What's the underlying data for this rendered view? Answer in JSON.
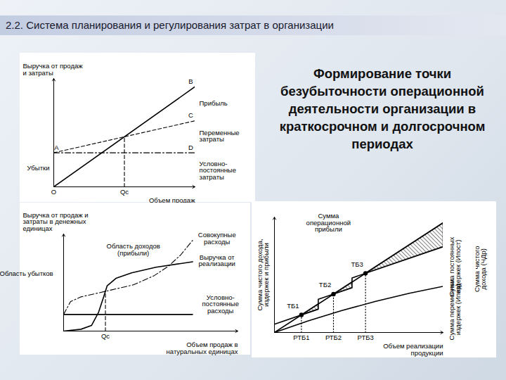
{
  "header": "2.2. Система планирования и регулирования затрат в организации",
  "title": "Формирование точки безубыточности операционной деятельности организации в краткосрочном и долгосрочном периодах",
  "chart_data": [
    {
      "type": "line",
      "color": "#000000",
      "ylabel": "Выручка от продаж и затраты",
      "xlabel": "Объем продаж",
      "xlim": [
        0,
        100
      ],
      "ylim": [
        0,
        105
      ],
      "xticks": [
        {
          "value": 0,
          "label": "O"
        },
        {
          "value": 50,
          "label": "Qc"
        }
      ],
      "tick_labels": "x",
      "series": [
        {
          "x": [
            0,
            100
          ],
          "values": [
            0,
            97
          ],
          "line_style": "solid"
        },
        {
          "x": [
            0,
            100
          ],
          "values": [
            33,
            64
          ],
          "line_style": "dashed"
        },
        {
          "x": [
            0,
            100
          ],
          "values": [
            33,
            33
          ],
          "line_style": "dashdot"
        },
        {
          "x": [
            50,
            50
          ],
          "values": [
            0,
            48.5
          ],
          "line_style": "dashed"
        }
      ],
      "annotations": [
        {
          "text": "A",
          "x": 2,
          "y": 38
        },
        {
          "text": "B",
          "x": 97,
          "y": 102
        },
        {
          "text": "C",
          "x": 97,
          "y": 69
        },
        {
          "text": "D",
          "x": 97,
          "y": 38
        },
        {
          "text": "Прибыль",
          "x": 103,
          "y": 81
        },
        {
          "text": "Переменные затраты",
          "x": 103,
          "y": 49
        },
        {
          "text": "Условно-постоянные затраты",
          "x": 103,
          "y": 16
        },
        {
          "text": "Убытки",
          "x": -3,
          "y": 18
        }
      ]
    },
    {
      "type": "line",
      "color": "#000000",
      "ylabel": "Выручка от продаж и затраты в денежных единицах",
      "xlabel": "Объем продаж в натуральных единицах",
      "xlim": [
        0,
        100
      ],
      "ylim": [
        0,
        105
      ],
      "xticks": [
        {
          "value": 24,
          "label": "Qc"
        }
      ],
      "tick_labels": "x",
      "series": [
        {
          "x": [
            0,
            10,
            16,
            20,
            23,
            25,
            30,
            39,
            53,
            74
          ],
          "values": [
            0,
            2,
            6,
            20,
            37,
            49,
            57,
            63,
            69,
            75
          ],
          "line_style": "solid"
        },
        {
          "x": [
            0,
            4,
            10,
            24,
            40,
            52,
            60,
            67,
            74
          ],
          "values": [
            18,
            32,
            37,
            43,
            50,
            60,
            70,
            82,
            98
          ],
          "line_style": "dashdot"
        },
        {
          "x": [
            0,
            74
          ],
          "values": [
            18,
            18
          ],
          "line_style": "solid"
        },
        {
          "x": [
            24,
            24
          ],
          "values": [
            0,
            43
          ],
          "line_style": "dashed"
        }
      ],
      "annotations": [
        {
          "text": "Совокупные расходы",
          "x": 88,
          "y": 100
        },
        {
          "text": "Выручка от реализации",
          "x": 88,
          "y": 76
        },
        {
          "text": "Условно-постоянные расходы",
          "x": 90,
          "y": 29
        },
        {
          "text": "Область доходов (прибыли)",
          "x": 40,
          "y": 88
        },
        {
          "text": "Область убытков",
          "x": -6,
          "y": 62
        }
      ]
    },
    {
      "type": "line",
      "color": "#000000",
      "ylabel": "Сумма чистого дохода, издержек и прибыли",
      "xlabel": "Объем реализации продукции",
      "xlim": [
        0,
        100
      ],
      "ylim": [
        0,
        100
      ],
      "xticks": [
        {
          "value": 16,
          "label": "РТБ1"
        },
        {
          "value": 35,
          "label": "РТБ2"
        },
        {
          "value": 54,
          "label": "РТБ3"
        }
      ],
      "tick_labels": "x",
      "series": [
        {
          "type": "area",
          "x": [
            16,
            26
          ],
          "values": [
            15.2,
            24.7
          ],
          "lower": [
            15.2,
            20.2
          ]
        },
        {
          "type": "area",
          "x": [
            35,
            46
          ],
          "values": [
            33.25,
            43.7
          ],
          "lower": [
            33.25,
            38.75
          ]
        },
        {
          "type": "area",
          "x": [
            54,
            100
          ],
          "values": [
            51.3,
            95
          ],
          "lower": [
            51.3,
            74.3
          ]
        },
        {
          "x": [
            0,
            100
          ],
          "values": [
            0,
            95
          ],
          "line_style": "solid"
        },
        {
          "x": [
            0,
            26,
            26,
            46,
            46,
            100
          ],
          "values": [
            7.2,
            20.2,
            28.75,
            38.75,
            47.3,
            74.3
          ],
          "line_style": "solid"
        },
        {
          "x": [
            0,
            20,
            40,
            60,
            80,
            100
          ],
          "values": [
            0,
            10,
            19,
            27,
            34,
            40
          ],
          "line_style": "solid"
        },
        {
          "x": [
            16,
            16
          ],
          "values": [
            0,
            15.2
          ],
          "line_style": "dotted"
        },
        {
          "x": [
            35,
            35
          ],
          "values": [
            0,
            33.25
          ],
          "line_style": "dotted"
        },
        {
          "x": [
            54,
            54
          ],
          "values": [
            0,
            51.3
          ],
          "line_style": "dotted"
        },
        {
          "type": "scatter",
          "marker": "circle",
          "x": [
            16,
            35,
            54
          ],
          "values": [
            15.2,
            33.25,
            51.3
          ]
        }
      ],
      "annotations": [
        {
          "text": "ТБ1",
          "x": 11,
          "y": 23
        },
        {
          "text": "ТБ2",
          "x": 30,
          "y": 41
        },
        {
          "text": "ТБ3",
          "x": 49,
          "y": 59
        },
        {
          "text": "Сумма операционной прибыли",
          "x": 32,
          "y": 95
        },
        {
          "text": "Сумма постоянных издержек (Ипост)",
          "x": 107,
          "y": 57
        },
        {
          "text": "Сумма переменных издержек (Ипер)",
          "x": 107,
          "y": 20
        },
        {
          "text": "Сумма чистого дохода (ЧДр)",
          "x": 122,
          "y": 55
        }
      ]
    }
  ]
}
